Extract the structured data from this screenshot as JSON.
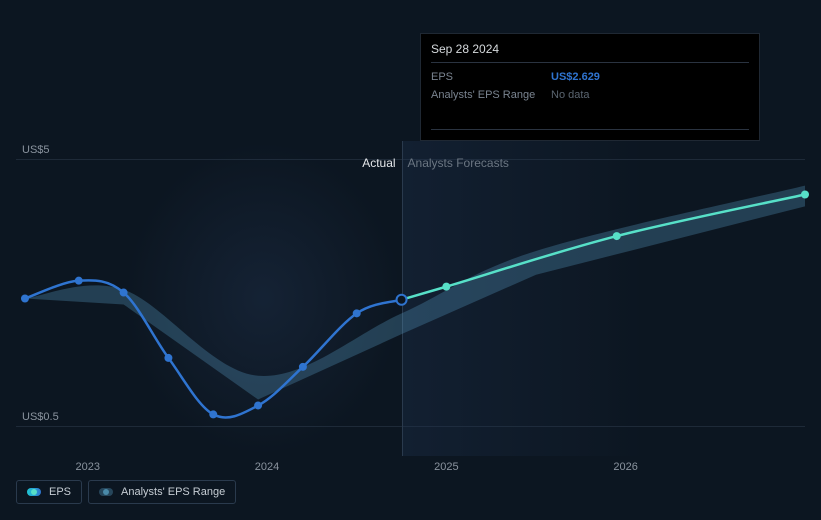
{
  "chart": {
    "type": "line",
    "background_color": "#0c1621",
    "gridline_color": "#1e2a38",
    "actual_color": "#2f74d0",
    "forecast_color": "#57e0c8",
    "range_color": "rgba(90,160,200,0.30)",
    "marker_radius": 4,
    "line_width": 2.5,
    "x_axis": {
      "ticks": [
        {
          "t": 2023.0,
          "label": "2023"
        },
        {
          "t": 2024.0,
          "label": "2024"
        },
        {
          "t": 2025.0,
          "label": "2025"
        },
        {
          "t": 2026.0,
          "label": "2026"
        }
      ],
      "tmin": 2022.6,
      "tmax": 2027.0,
      "highlight_divider_t": 2024.75,
      "label_fontsize": 11,
      "label_color": "#8a939e"
    },
    "y_axis": {
      "ticks": [
        {
          "v": 5.0,
          "label": "US$5"
        },
        {
          "v": 0.5,
          "label": "US$0.5"
        }
      ],
      "vmin": 0.0,
      "vmax": 5.3,
      "label_fontsize": 11,
      "label_color": "#8a939e"
    },
    "regions": {
      "actual_label": "Actual",
      "forecast_label": "Analysts Forecasts",
      "actual_label_color": "#e6e8eb",
      "forecast_label_color": "#6b7682"
    },
    "series": {
      "actual": [
        {
          "t": 2022.65,
          "v": 2.65
        },
        {
          "t": 2022.95,
          "v": 2.95
        },
        {
          "t": 2023.2,
          "v": 2.75
        },
        {
          "t": 2023.45,
          "v": 1.65
        },
        {
          "t": 2023.7,
          "v": 0.7
        },
        {
          "t": 2023.95,
          "v": 0.85
        },
        {
          "t": 2024.2,
          "v": 1.5
        },
        {
          "t": 2024.5,
          "v": 2.4
        },
        {
          "t": 2024.75,
          "v": 2.629
        }
      ],
      "forecast": [
        {
          "t": 2024.75,
          "v": 2.629
        },
        {
          "t": 2025.0,
          "v": 2.85
        },
        {
          "t": 2025.95,
          "v": 3.7
        },
        {
          "t": 2027.0,
          "v": 4.4
        }
      ],
      "range_upper": [
        {
          "t": 2022.65,
          "v": 2.65
        },
        {
          "t": 2023.2,
          "v": 2.8
        },
        {
          "t": 2023.95,
          "v": 1.35
        },
        {
          "t": 2024.75,
          "v": 2.4
        },
        {
          "t": 2025.5,
          "v": 3.45
        },
        {
          "t": 2027.0,
          "v": 4.55
        }
      ],
      "range_lower": [
        {
          "t": 2022.65,
          "v": 2.65
        },
        {
          "t": 2023.2,
          "v": 2.55
        },
        {
          "t": 2023.95,
          "v": 0.95
        },
        {
          "t": 2024.75,
          "v": 2.05
        },
        {
          "t": 2025.5,
          "v": 3.05
        },
        {
          "t": 2027.0,
          "v": 4.2
        }
      ]
    }
  },
  "tooltip": {
    "title": "Sep 28 2024",
    "rows": [
      {
        "key": "EPS",
        "value": "US$2.629",
        "style": "eps"
      },
      {
        "key": "Analysts' EPS Range",
        "value": "No data",
        "style": "muted"
      }
    ]
  },
  "legend": {
    "items": [
      {
        "label": "EPS",
        "swatch": "eps"
      },
      {
        "label": "Analysts' EPS Range",
        "swatch": "range"
      }
    ]
  }
}
